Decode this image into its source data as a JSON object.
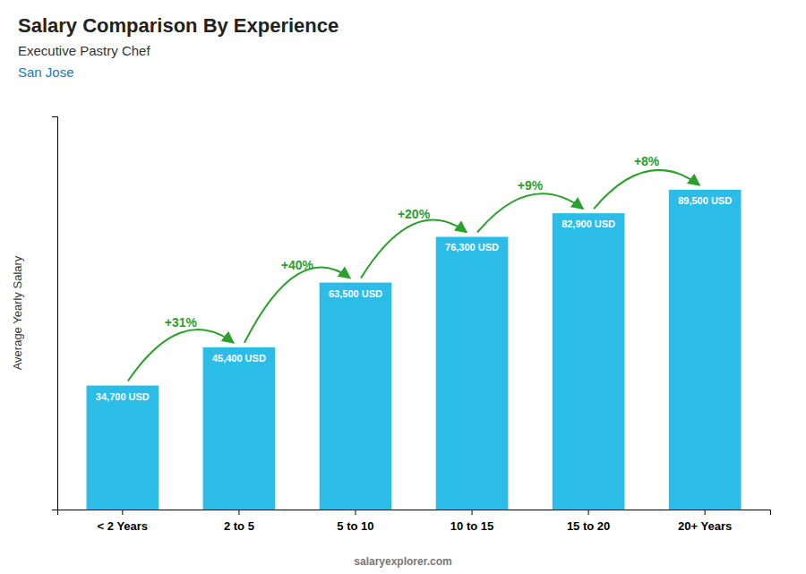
{
  "chart_data": {
    "type": "bar",
    "title": "Salary Comparison By Experience",
    "subtitle": "Executive Pastry Chef",
    "annotations": [
      "San Jose",
      "salaryexplorer.com"
    ],
    "ylabel": "Average Yearly Salary",
    "categories": [
      "< 2 Years",
      "2 to 5",
      "5 to 10",
      "10 to 15",
      "15 to 20",
      "20+ Years"
    ],
    "values": [
      34700,
      45400,
      63500,
      76300,
      82900,
      89500
    ],
    "value_labels": [
      "34,700 USD",
      "45,400 USD",
      "63,500 USD",
      "76,300 USD",
      "82,900 USD",
      "89,500 USD"
    ],
    "change_labels": [
      "+31%",
      "+40%",
      "+20%",
      "+9%",
      "+8%"
    ],
    "color": "#2bbde8",
    "ylim": [
      0,
      110000
    ],
    "data_labels": true,
    "tick_labels": "x",
    "grid": false
  }
}
